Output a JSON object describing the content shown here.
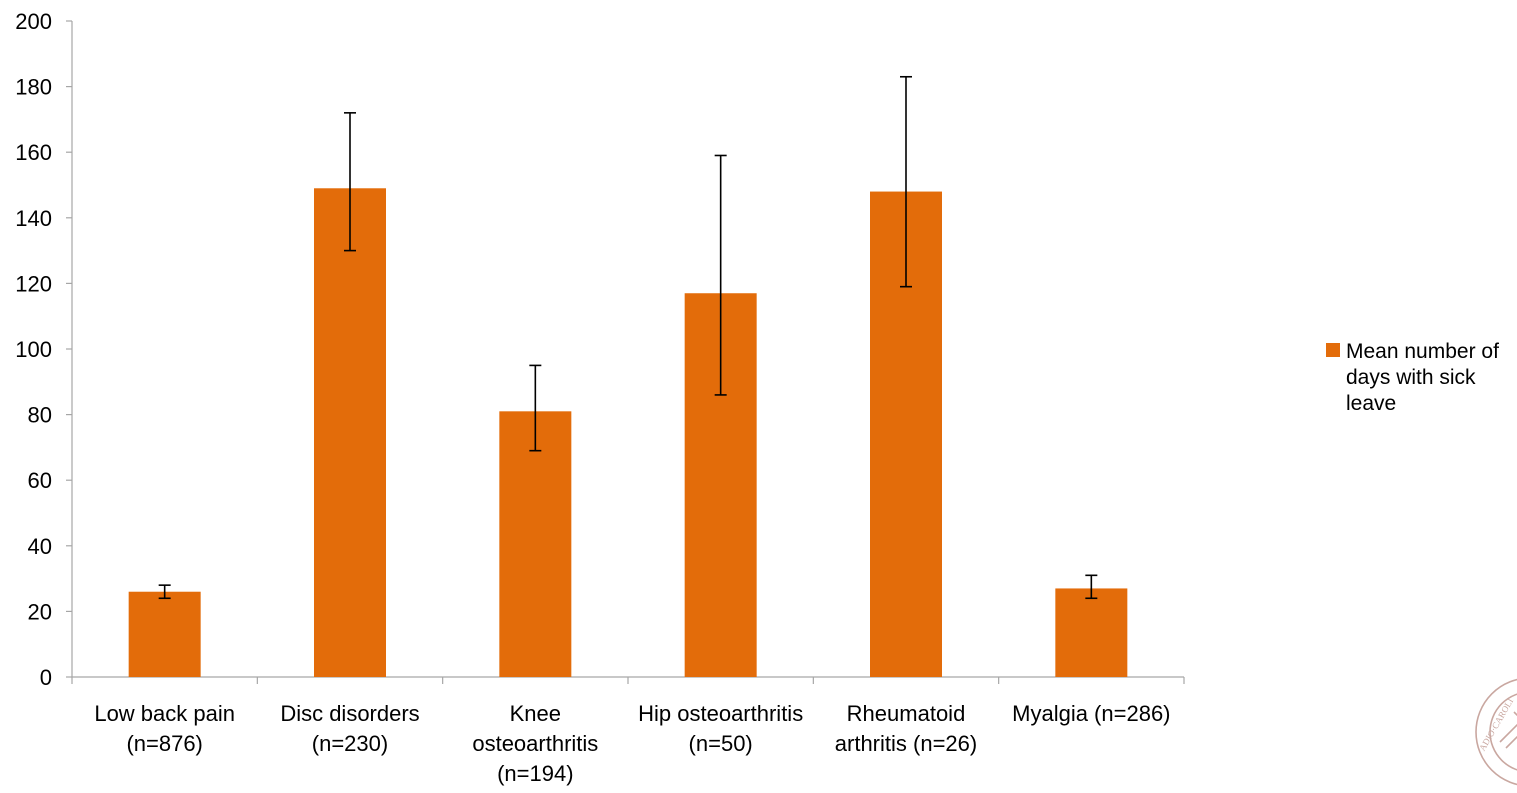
{
  "chart_data": {
    "type": "bar",
    "categories": [
      "Low back pain\n(n=876)",
      "Disc disorders\n(n=230)",
      "Knee\nosteoarthritis\n(n=194)",
      "Hip osteoarthritis\n(n=50)",
      "Rheumatoid\narthritis (n=26)",
      "Myalgia  (n=286)"
    ],
    "series": [
      {
        "name": "Mean number of\ndays with sick\nleave",
        "values": [
          26,
          149,
          81,
          117,
          148,
          27
        ],
        "error_low": [
          24,
          130,
          69,
          86,
          119,
          24
        ],
        "error_high": [
          28,
          172,
          95,
          159,
          183,
          31
        ],
        "color": "#E36C0A"
      }
    ],
    "ylim": [
      0,
      200
    ],
    "yticks": [
      0,
      20,
      40,
      60,
      80,
      100,
      120,
      140,
      160,
      180,
      200
    ],
    "grid": false,
    "legend_position": "right"
  },
  "colors": {
    "bar": "#E36C0A",
    "axis": "#A6A6A6",
    "error_bar": "#000000",
    "seal": "#C9A7A0"
  },
  "logo": {
    "icon": "university-seal-icon",
    "text": "ADIO·CAROLI"
  }
}
